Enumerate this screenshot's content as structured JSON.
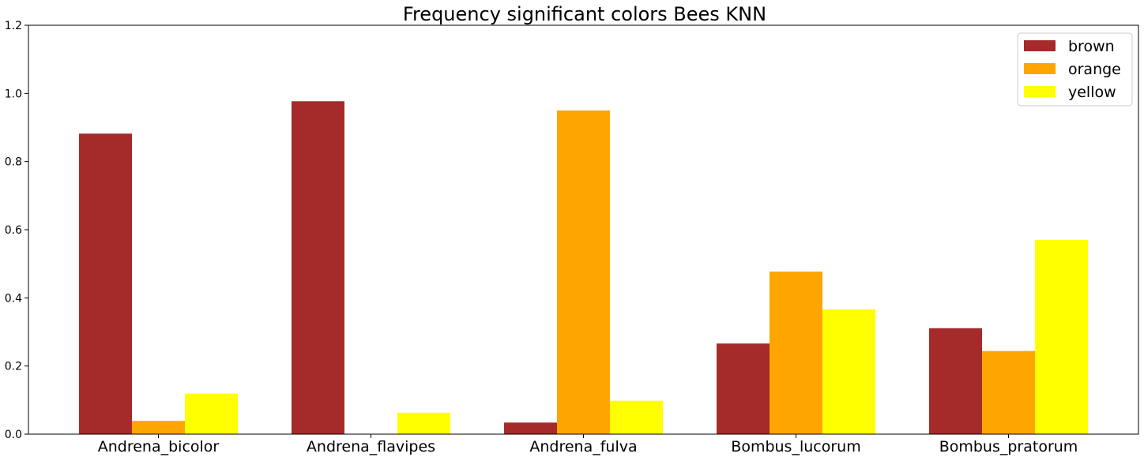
{
  "chart_data": {
    "type": "bar",
    "title": "Frequency significant colors Bees KNN",
    "xlabel": "",
    "ylabel": "",
    "categories": [
      "Andrena_bicolor",
      "Andrena_flavipes",
      "Andrena_fulva",
      "Bombus_lucorum",
      "Bombus_pratorum"
    ],
    "series": [
      {
        "name": "brown",
        "color": "#a52a2a",
        "values": [
          0.882,
          0.977,
          0.034,
          0.266,
          0.311
        ]
      },
      {
        "name": "orange",
        "color": "#ffa500",
        "values": [
          0.039,
          0.0,
          0.95,
          0.477,
          0.244
        ]
      },
      {
        "name": "yellow",
        "color": "#ffff00",
        "values": [
          0.119,
          0.063,
          0.098,
          0.366,
          0.57
        ]
      }
    ],
    "ylim": [
      0,
      1.2
    ],
    "yticks": [
      "0.0",
      "0.2",
      "0.4",
      "0.6",
      "0.8",
      "1.0",
      "1.2"
    ],
    "grid": false,
    "legend_position": "top-right"
  }
}
